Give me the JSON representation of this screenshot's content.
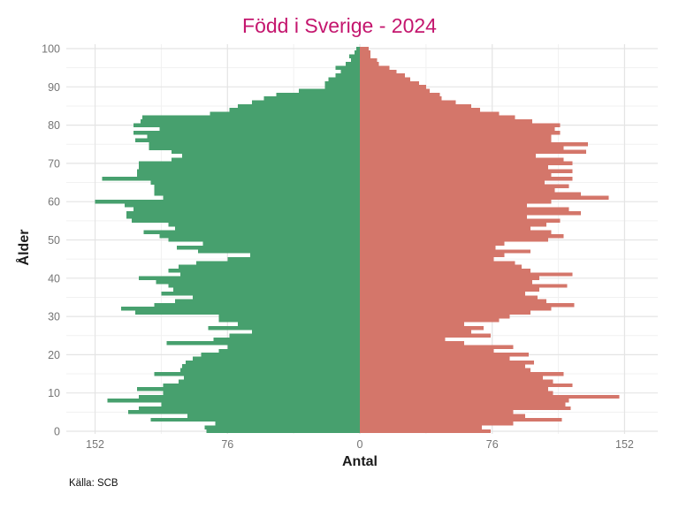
{
  "title": "Född i Sverige - 2024",
  "caption": "Källa: SCB",
  "colors": {
    "left_bars": "#47a06e",
    "right_bars": "#d4766a",
    "title": "#c4166e",
    "tick_labels": "#757575",
    "grid_major": "#e4e4e4",
    "grid_minor": "#f1f1f1",
    "axis_titles": "#1a1a1a",
    "background": "#ffffff"
  },
  "chart_data": {
    "type": "bar",
    "subtype": "population-pyramid",
    "title": "Född i Sverige - 2024",
    "xlabel": "Antal",
    "ylabel": "Ålder",
    "caption": "Källa: SCB",
    "legend": "none",
    "grid": true,
    "x_axis": {
      "tick_values": [
        -152,
        -76,
        0,
        76,
        152
      ],
      "tick_labels": [
        "152",
        "76",
        "0",
        "76",
        "152"
      ],
      "minor_tick_values": [
        -114,
        -38,
        38,
        114
      ],
      "range": [
        -170,
        170
      ]
    },
    "y_axis": {
      "tick_values": [
        0,
        10,
        20,
        30,
        40,
        50,
        60,
        70,
        80,
        90,
        100
      ],
      "tick_labels": [
        "0",
        "10",
        "20",
        "30",
        "40",
        "50",
        "60",
        "70",
        "80",
        "90",
        "100"
      ],
      "range": [
        0,
        101
      ]
    },
    "ages": "0-100 (one bar per age, bottom to top)",
    "series": [
      {
        "name": "left",
        "color": "#47a06e",
        "values": [
          88,
          89,
          83,
          120,
          99,
          133,
          127,
          114,
          145,
          127,
          113,
          128,
          113,
          104,
          101,
          118,
          103,
          102,
          100,
          96,
          91,
          81,
          76,
          111,
          84,
          75,
          62,
          87,
          70,
          81,
          81,
          129,
          137,
          118,
          106,
          96,
          114,
          107,
          110,
          117,
          127,
          103,
          110,
          104,
          94,
          76,
          63,
          93,
          105,
          90,
          110,
          115,
          124,
          106,
          110,
          131,
          134,
          134,
          130,
          135,
          152,
          113,
          118,
          118,
          118,
          120,
          148,
          128,
          128,
          127,
          127,
          108,
          102,
          108,
          121,
          121,
          129,
          122,
          130,
          115,
          130,
          126,
          125,
          86,
          75,
          70,
          62,
          55,
          48,
          35,
          20,
          20,
          18,
          14,
          11,
          14,
          8,
          5,
          6,
          3,
          2
        ]
      },
      {
        "name": "right",
        "color": "#d4766a",
        "values": [
          75,
          70,
          88,
          116,
          95,
          88,
          121,
          118,
          120,
          149,
          111,
          108,
          122,
          111,
          105,
          117,
          98,
          95,
          100,
          86,
          97,
          77,
          88,
          60,
          49,
          75,
          64,
          71,
          60,
          80,
          86,
          98,
          110,
          123,
          107,
          102,
          95,
          103,
          119,
          99,
          103,
          122,
          98,
          93,
          89,
          77,
          83,
          98,
          78,
          83,
          108,
          117,
          110,
          98,
          107,
          115,
          96,
          127,
          120,
          96,
          110,
          143,
          127,
          112,
          120,
          106,
          122,
          110,
          122,
          108,
          122,
          117,
          101,
          130,
          117,
          131,
          110,
          110,
          115,
          112,
          115,
          99,
          89,
          80,
          69,
          64,
          55,
          47,
          46,
          40,
          38,
          34,
          29,
          26,
          21,
          17,
          11,
          10,
          6,
          6,
          5
        ]
      }
    ]
  }
}
